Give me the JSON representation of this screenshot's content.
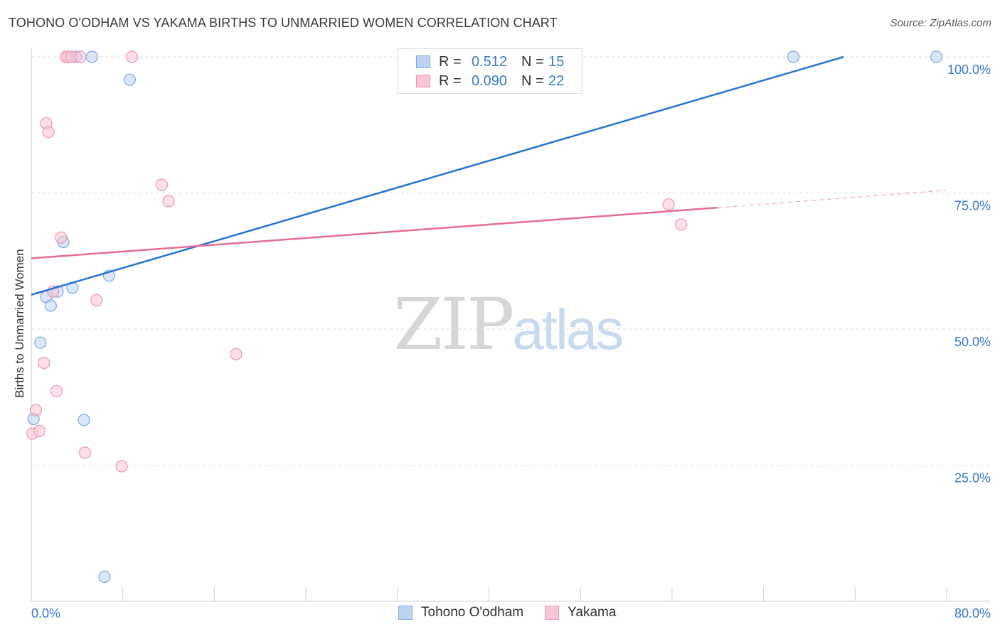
{
  "title": "TOHONO O'ODHAM VS YAKAMA BIRTHS TO UNMARRIED WOMEN CORRELATION CHART",
  "source": "Source: ZipAtlas.com",
  "watermark": {
    "zip": "ZIP",
    "atlas": "atlas"
  },
  "legend": {
    "rows": [
      {
        "r_label": "R =",
        "r_value": "0.512",
        "n_label": "N =",
        "n_value": "15"
      },
      {
        "r_label": "R =",
        "r_value": "0.090",
        "n_label": "N =",
        "n_value": "22"
      }
    ]
  },
  "colors": {
    "tohono_fill": "#bcd4f2",
    "tohono_stroke": "#7ea8df",
    "tohono_line": "#2a72d0",
    "yakama_fill": "#f8c6d5",
    "yakama_stroke": "#ee95b0",
    "yakama_line": "#e46c95",
    "axis_text": "#3b78c8",
    "grid": "#dcdcdc"
  },
  "chart_data": {
    "type": "scatter",
    "title": "TOHONO O'ODHAM VS YAKAMA BIRTHS TO UNMARRIED WOMEN CORRELATION CHART",
    "xlabel": "",
    "ylabel": "Births to Unmarried Women",
    "xlim": [
      0,
      80
    ],
    "ylim": [
      0,
      100
    ],
    "x_tick_labels": [
      "0.0%",
      "80.0%"
    ],
    "y_ticks": [
      25,
      50,
      75,
      100
    ],
    "y_tick_labels": [
      "25.0%",
      "50.0%",
      "75.0%",
      "100.0%"
    ],
    "grid": true,
    "legend_position": "top-center",
    "series": [
      {
        "name": "Tohono O'odham",
        "r": 0.512,
        "n": 15,
        "points": [
          [
            0.2,
            33.5
          ],
          [
            0.8,
            47.5
          ],
          [
            1.3,
            55.9
          ],
          [
            1.7,
            54.3
          ],
          [
            2.3,
            56.9
          ],
          [
            2.8,
            66.0
          ],
          [
            3.6,
            57.6
          ],
          [
            3.9,
            100
          ],
          [
            5.3,
            100
          ],
          [
            6.4,
            4.5
          ],
          [
            4.6,
            33.3
          ],
          [
            6.8,
            59.8
          ],
          [
            8.6,
            95.8
          ],
          [
            66.6,
            100
          ],
          [
            79.1,
            100
          ]
        ],
        "trend": {
          "x": [
            0,
            71
          ],
          "y": [
            56.3,
            100
          ]
        }
      },
      {
        "name": "Yakama",
        "r": 0.09,
        "n": 22,
        "points": [
          [
            0.1,
            30.8
          ],
          [
            0.4,
            35.1
          ],
          [
            0.7,
            31.3
          ],
          [
            1.1,
            43.8
          ],
          [
            1.3,
            87.8
          ],
          [
            1.5,
            86.2
          ],
          [
            1.9,
            56.9
          ],
          [
            2.2,
            38.6
          ],
          [
            2.6,
            66.8
          ],
          [
            3.0,
            100
          ],
          [
            3.2,
            100
          ],
          [
            3.5,
            100
          ],
          [
            4.3,
            100
          ],
          [
            4.7,
            27.3
          ],
          [
            5.7,
            55.3
          ],
          [
            7.9,
            24.8
          ],
          [
            8.8,
            100
          ],
          [
            11.4,
            76.5
          ],
          [
            12.0,
            73.5
          ],
          [
            17.9,
            45.4
          ],
          [
            55.7,
            72.9
          ],
          [
            56.8,
            69.2
          ]
        ],
        "trend": {
          "x": [
            0,
            60
          ],
          "y": [
            63.0,
            72.3
          ]
        },
        "trend_extension": {
          "x": [
            60,
            80
          ],
          "y": [
            72.3,
            75.5
          ]
        }
      }
    ]
  },
  "bottom_legend": [
    {
      "label": "Tohono O'odham"
    },
    {
      "label": "Yakama"
    }
  ]
}
